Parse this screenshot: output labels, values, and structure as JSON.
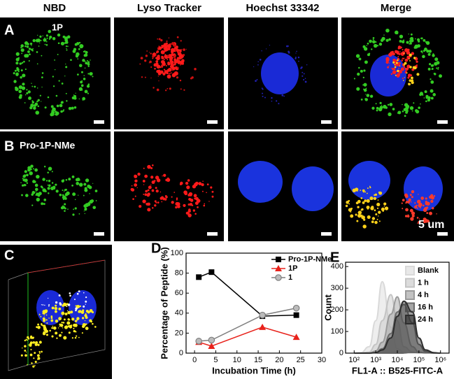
{
  "headers": [
    "NBD",
    "Lyso Tracker",
    "Hoechst 33342",
    "Merge"
  ],
  "panels": {
    "A": {
      "label": "A",
      "sample": "1P"
    },
    "B": {
      "label": "B",
      "sample": "Pro-1P-NMe",
      "scale_bar": "5 um"
    },
    "C": {
      "label": "C"
    }
  },
  "chart_data": [
    {
      "type": "line",
      "panel_label": "D",
      "x_label": "Incubation Time (h)",
      "y_label": "Percentage of Peptide (%)",
      "x": [
        1,
        4,
        16,
        24
      ],
      "series": [
        {
          "name": "Pro-1P-NMe",
          "color": "#000000",
          "marker": "square",
          "values": [
            76,
            81,
            37,
            38
          ]
        },
        {
          "name": "1P",
          "color": "#e8221b",
          "marker": "triangle",
          "values": [
            11,
            7,
            26,
            16
          ]
        },
        {
          "name": "1",
          "color": "#7f7f7f",
          "marker": "circle",
          "values": [
            12,
            13,
            38,
            45
          ]
        }
      ],
      "xlim": [
        -2,
        30
      ],
      "xticks": [
        0,
        5,
        10,
        15,
        20,
        25,
        30
      ],
      "ylim": [
        0,
        100
      ],
      "yticks": [
        0,
        20,
        40,
        60,
        80,
        100
      ],
      "legend": "upper right"
    },
    {
      "type": "histogram-overlay",
      "panel_label": "E",
      "x_label": "FL1-A :: B525-FITC-A",
      "y_label": "Count",
      "xscale": "log",
      "x": [
        100,
        200,
        500,
        1000,
        2000,
        5000,
        10000,
        20000,
        50000,
        100000,
        200000,
        500000,
        1000000
      ],
      "series": [
        {
          "name": "Blank",
          "color": "#d9d9d9",
          "values": [
            0,
            2,
            30,
            150,
            330,
            120,
            20,
            3,
            0,
            0,
            0,
            0,
            0
          ]
        },
        {
          "name": "1 h",
          "color": "#c4c4c4",
          "values": [
            0,
            0,
            5,
            40,
            150,
            270,
            150,
            30,
            5,
            0,
            0,
            0,
            0
          ]
        },
        {
          "name": "4 h",
          "color": "#9a9a9a",
          "values": [
            0,
            0,
            0,
            10,
            50,
            180,
            260,
            140,
            30,
            5,
            0,
            0,
            0
          ]
        },
        {
          "name": "16 h",
          "color": "#6a6a6a",
          "values": [
            0,
            0,
            0,
            3,
            20,
            90,
            190,
            225,
            140,
            40,
            8,
            0,
            0
          ]
        },
        {
          "name": "24 h",
          "color": "#2e2e2e",
          "values": [
            0,
            0,
            0,
            2,
            15,
            70,
            170,
            240,
            190,
            70,
            15,
            2,
            0
          ]
        }
      ],
      "xlim": [
        40,
        2500000
      ],
      "xticks": [
        {
          "value": 100,
          "label": "10²"
        },
        {
          "value": 1000,
          "label": "10³"
        },
        {
          "value": 10000,
          "label": "10⁴"
        },
        {
          "value": 100000,
          "label": "10⁵"
        },
        {
          "value": 1000000,
          "label": "10⁶"
        }
      ],
      "ylim": [
        0,
        420
      ],
      "yticks": [
        0,
        100,
        200,
        300,
        400
      ],
      "legend": "upper right"
    }
  ]
}
